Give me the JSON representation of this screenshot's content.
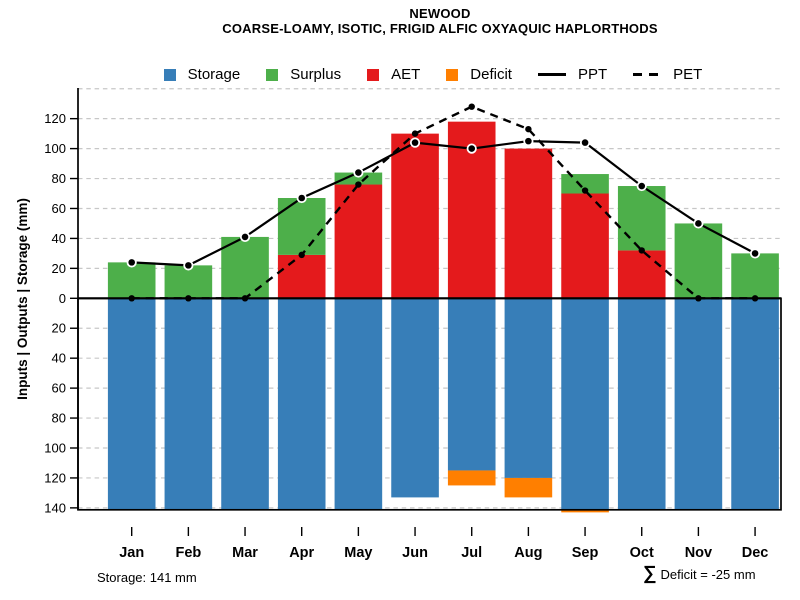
{
  "header": {
    "title": "NEWOOD",
    "subtitle": "COARSE-LOAMY, ISOTIC, FRIGID ALFIC OXYAQUIC HAPLORTHODS"
  },
  "legend": {
    "position": "top",
    "items": [
      {
        "label": "Storage",
        "kind": "swatch",
        "color": "#377EB8"
      },
      {
        "label": "Surplus",
        "kind": "swatch",
        "color": "#4DAF4A"
      },
      {
        "label": "AET",
        "kind": "swatch",
        "color": "#E41A1C"
      },
      {
        "label": "Deficit",
        "kind": "swatch",
        "color": "#FF7F00"
      },
      {
        "label": "PPT",
        "kind": "line",
        "style": "solid"
      },
      {
        "label": "PET",
        "kind": "line",
        "style": "dashed"
      }
    ]
  },
  "footer": {
    "storage_note": "Storage: 141 mm",
    "deficit_sigma": "∑",
    "deficit_note": "Deficit = -25 mm"
  },
  "chart_data": {
    "type": "bar",
    "variant": "monthly water balance: stacked bars up (AET+Surplus) and down (Storage+Deficit) on mirrored y-axis, with PPT/PET line overlays",
    "title": "NEWOOD",
    "subtitle": "COARSE-LOAMY, ISOTIC, FRIGID ALFIC OXYAQUIC HAPLORTHODS",
    "categories": [
      "Jan",
      "Feb",
      "Mar",
      "Apr",
      "May",
      "Jun",
      "Jul",
      "Aug",
      "Sep",
      "Oct",
      "Nov",
      "Dec"
    ],
    "series": [
      {
        "name": "Storage",
        "render": "bar",
        "direction": "down",
        "color": "#377EB8",
        "values": [
          141,
          141,
          141,
          141,
          141,
          133,
          115,
          120,
          141,
          141,
          141,
          141
        ]
      },
      {
        "name": "Deficit",
        "render": "bar",
        "direction": "down",
        "color": "#FF7F00",
        "values": [
          0,
          0,
          0,
          0,
          0,
          0,
          10,
          13,
          2,
          0,
          0,
          0
        ]
      },
      {
        "name": "AET",
        "render": "bar",
        "direction": "up",
        "color": "#E41A1C",
        "values": [
          0,
          0,
          0,
          29,
          76,
          110,
          118,
          100,
          70,
          32,
          0,
          0
        ]
      },
      {
        "name": "Surplus",
        "render": "bar",
        "direction": "up",
        "color": "#4DAF4A",
        "values": [
          24,
          22,
          41,
          38,
          8,
          0,
          0,
          0,
          13,
          43,
          50,
          30
        ]
      },
      {
        "name": "PPT",
        "render": "line",
        "line_style": "solid",
        "color": "#000000",
        "marker": {
          "r": 4.2,
          "fill": "#000000",
          "ring": "#ffffff",
          "ring_width": 1.8
        },
        "values": [
          24,
          22,
          41,
          67,
          84,
          104,
          100,
          105,
          104,
          75,
          50,
          30
        ]
      },
      {
        "name": "PET",
        "render": "line",
        "line_style": "dashed",
        "color": "#000000",
        "marker": {
          "r": 3.2,
          "fill": "#000000"
        },
        "values": [
          0,
          0,
          0,
          29,
          76,
          110,
          128,
          113,
          72,
          32,
          0,
          0
        ]
      }
    ],
    "xlabel": "",
    "ylabel": "Inputs | Outputs | Storage   (mm)",
    "y_axis": {
      "mirrored": true,
      "units": "mm",
      "up_ticks": [
        0,
        20,
        40,
        60,
        80,
        100,
        120
      ],
      "down_ticks": [
        20,
        40,
        60,
        80,
        100,
        120,
        140
      ],
      "up_grid_max": 140,
      "down_grid_max": 140,
      "grid": "dashed"
    },
    "grid_color": "#c7c7c7",
    "axis_color": "#000000"
  }
}
